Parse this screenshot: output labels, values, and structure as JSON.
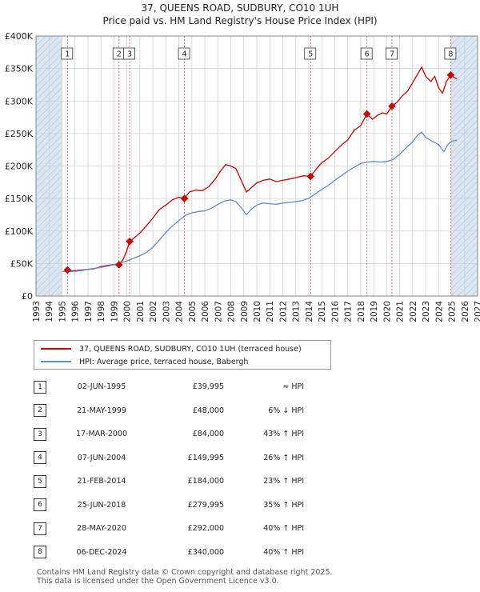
{
  "header": {
    "title_line1": "37, QUEENS ROAD, SUDBURY, CO10 1UH",
    "title_line2": "Price paid vs. HM Land Registry's House Price Index (HPI)"
  },
  "colors": {
    "property": "#cc0000",
    "hpi": "#5b8ccc",
    "grid": "#d0d0d0",
    "shade": "#dbe6f5"
  },
  "chart_data": {
    "type": "line",
    "title": "Price paid vs. HM Land Registry's House Price Index (HPI)",
    "xlim": [
      1993,
      2027
    ],
    "ylim": [
      0,
      400000
    ],
    "x_ticks": [
      "1993",
      "1994",
      "1995",
      "1996",
      "1997",
      "1998",
      "1999",
      "2000",
      "2001",
      "2002",
      "2003",
      "2004",
      "2005",
      "2006",
      "2007",
      "2008",
      "2009",
      "2010",
      "2011",
      "2012",
      "2013",
      "2014",
      "2015",
      "2016",
      "2017",
      "2018",
      "2019",
      "2020",
      "2021",
      "2022",
      "2023",
      "2024",
      "2025",
      "2026",
      "2027"
    ],
    "y_ticks": [
      {
        "value": 0,
        "label": "£0"
      },
      {
        "value": 50000,
        "label": "£50K"
      },
      {
        "value": 100000,
        "label": "£100K"
      },
      {
        "value": 150000,
        "label": "£150K"
      },
      {
        "value": 200000,
        "label": "£200K"
      },
      {
        "value": 250000,
        "label": "£250K"
      },
      {
        "value": 300000,
        "label": "£300K"
      },
      {
        "value": 350000,
        "label": "£350K"
      },
      {
        "value": 400000,
        "label": "£400K"
      }
    ],
    "shaded_ranges": [
      [
        1993,
        1995.0
      ],
      [
        2025.0,
        2027
      ]
    ],
    "series": [
      {
        "name": "37, QUEENS ROAD, SUDBURY, CO10 1UH (terraced house)",
        "color": "#cc0000",
        "points": [
          [
            1995.42,
            39995
          ],
          [
            1995.8,
            38500
          ],
          [
            1996.5,
            40000
          ],
          [
            1997.0,
            41000
          ],
          [
            1997.5,
            42000
          ],
          [
            1998.0,
            45000
          ],
          [
            1998.5,
            47000
          ],
          [
            1999.0,
            48500
          ],
          [
            1999.39,
            48000
          ],
          [
            1999.7,
            56000
          ],
          [
            2000.0,
            70000
          ],
          [
            2000.21,
            84000
          ],
          [
            2000.6,
            90000
          ],
          [
            2001.0,
            97000
          ],
          [
            2001.5,
            108000
          ],
          [
            2002.0,
            120000
          ],
          [
            2002.5,
            133000
          ],
          [
            2003.0,
            140000
          ],
          [
            2003.5,
            148000
          ],
          [
            2004.0,
            152000
          ],
          [
            2004.43,
            149995
          ],
          [
            2004.8,
            160000
          ],
          [
            2005.3,
            163000
          ],
          [
            2005.8,
            162000
          ],
          [
            2006.3,
            168000
          ],
          [
            2006.8,
            180000
          ],
          [
            2007.2,
            192000
          ],
          [
            2007.6,
            202000
          ],
          [
            2008.0,
            200000
          ],
          [
            2008.4,
            196000
          ],
          [
            2008.8,
            178000
          ],
          [
            2009.2,
            160000
          ],
          [
            2009.6,
            167000
          ],
          [
            2010.0,
            174000
          ],
          [
            2010.5,
            178000
          ],
          [
            2011.0,
            180000
          ],
          [
            2011.5,
            176000
          ],
          [
            2012.0,
            178000
          ],
          [
            2012.5,
            180000
          ],
          [
            2013.0,
            182000
          ],
          [
            2013.6,
            185000
          ],
          [
            2014.14,
            184000
          ],
          [
            2014.6,
            196000
          ],
          [
            2015.0,
            205000
          ],
          [
            2015.5,
            212000
          ],
          [
            2016.0,
            222000
          ],
          [
            2016.5,
            232000
          ],
          [
            2017.0,
            240000
          ],
          [
            2017.5,
            255000
          ],
          [
            2018.0,
            262000
          ],
          [
            2018.48,
            279995
          ],
          [
            2018.9,
            272000
          ],
          [
            2019.3,
            278000
          ],
          [
            2019.7,
            282000
          ],
          [
            2020.0,
            280000
          ],
          [
            2020.41,
            292000
          ],
          [
            2020.8,
            298000
          ],
          [
            2021.2,
            308000
          ],
          [
            2021.6,
            315000
          ],
          [
            2022.0,
            328000
          ],
          [
            2022.4,
            342000
          ],
          [
            2022.7,
            352000
          ],
          [
            2023.0,
            338000
          ],
          [
            2023.4,
            330000
          ],
          [
            2023.7,
            338000
          ],
          [
            2024.0,
            320000
          ],
          [
            2024.3,
            312000
          ],
          [
            2024.6,
            330000
          ],
          [
            2024.93,
            340000
          ],
          [
            2025.2,
            336000
          ],
          [
            2025.4,
            334000
          ]
        ]
      },
      {
        "name": "HPI: Average price, terraced house, Babergh",
        "color": "#5b8ccc",
        "points": [
          [
            1995.0,
            38000
          ],
          [
            1995.5,
            37500
          ],
          [
            1996.0,
            38000
          ],
          [
            1996.5,
            39000
          ],
          [
            1997.0,
            41000
          ],
          [
            1997.5,
            42500
          ],
          [
            1998.0,
            44000
          ],
          [
            1998.5,
            46000
          ],
          [
            1999.0,
            48000
          ],
          [
            1999.5,
            51000
          ],
          [
            2000.0,
            54000
          ],
          [
            2000.5,
            58000
          ],
          [
            2001.0,
            62000
          ],
          [
            2001.5,
            67000
          ],
          [
            2002.0,
            75000
          ],
          [
            2002.5,
            86000
          ],
          [
            2003.0,
            98000
          ],
          [
            2003.5,
            108000
          ],
          [
            2004.0,
            116000
          ],
          [
            2004.5,
            124000
          ],
          [
            2005.0,
            128000
          ],
          [
            2005.5,
            130000
          ],
          [
            2006.0,
            131000
          ],
          [
            2006.5,
            135000
          ],
          [
            2007.0,
            141000
          ],
          [
            2007.5,
            146000
          ],
          [
            2008.0,
            148000
          ],
          [
            2008.4,
            145000
          ],
          [
            2008.8,
            136000
          ],
          [
            2009.2,
            125000
          ],
          [
            2009.6,
            134000
          ],
          [
            2010.0,
            140000
          ],
          [
            2010.5,
            143000
          ],
          [
            2011.0,
            142000
          ],
          [
            2011.5,
            141000
          ],
          [
            2012.0,
            143000
          ],
          [
            2012.5,
            144000
          ],
          [
            2013.0,
            145000
          ],
          [
            2013.5,
            147000
          ],
          [
            2014.0,
            150000
          ],
          [
            2014.5,
            157000
          ],
          [
            2015.0,
            164000
          ],
          [
            2015.5,
            170000
          ],
          [
            2016.0,
            178000
          ],
          [
            2016.5,
            185000
          ],
          [
            2017.0,
            192000
          ],
          [
            2017.5,
            198000
          ],
          [
            2018.0,
            204000
          ],
          [
            2018.5,
            206000
          ],
          [
            2019.0,
            207000
          ],
          [
            2019.5,
            206000
          ],
          [
            2020.0,
            207000
          ],
          [
            2020.5,
            210000
          ],
          [
            2021.0,
            218000
          ],
          [
            2021.5,
            228000
          ],
          [
            2022.0,
            237000
          ],
          [
            2022.4,
            248000
          ],
          [
            2022.7,
            252000
          ],
          [
            2023.0,
            244000
          ],
          [
            2023.5,
            238000
          ],
          [
            2024.0,
            233000
          ],
          [
            2024.4,
            222000
          ],
          [
            2024.7,
            233000
          ],
          [
            2025.0,
            238000
          ],
          [
            2025.4,
            240000
          ]
        ]
      }
    ],
    "sales": [
      {
        "num": "1",
        "x": 1995.42,
        "price": 39995
      },
      {
        "num": "2",
        "x": 1999.39,
        "price": 48000
      },
      {
        "num": "3",
        "x": 2000.21,
        "price": 84000
      },
      {
        "num": "4",
        "x": 2004.43,
        "price": 149995
      },
      {
        "num": "5",
        "x": 2014.14,
        "price": 184000
      },
      {
        "num": "6",
        "x": 2018.48,
        "price": 279995
      },
      {
        "num": "7",
        "x": 2020.41,
        "price": 292000
      },
      {
        "num": "8",
        "x": 2024.93,
        "price": 340000
      }
    ]
  },
  "legend": {
    "property_label": "37, QUEENS ROAD, SUDBURY, CO10 1UH (terraced house)",
    "hpi_label": "HPI: Average price, terraced house, Babergh"
  },
  "transactions": [
    {
      "num": "1",
      "date": "02-JUN-1995",
      "price": "£39,995",
      "hpi": "≈ HPI"
    },
    {
      "num": "2",
      "date": "21-MAY-1999",
      "price": "£48,000",
      "hpi": "6% ↓ HPI"
    },
    {
      "num": "3",
      "date": "17-MAR-2000",
      "price": "£84,000",
      "hpi": "43% ↑ HPI"
    },
    {
      "num": "4",
      "date": "07-JUN-2004",
      "price": "£149,995",
      "hpi": "26% ↑ HPI"
    },
    {
      "num": "5",
      "date": "21-FEB-2014",
      "price": "£184,000",
      "hpi": "23% ↑ HPI"
    },
    {
      "num": "6",
      "date": "25-JUN-2018",
      "price": "£279,995",
      "hpi": "35% ↑ HPI"
    },
    {
      "num": "7",
      "date": "28-MAY-2020",
      "price": "£292,000",
      "hpi": "40% ↑ HPI"
    },
    {
      "num": "8",
      "date": "06-DEC-2024",
      "price": "£340,000",
      "hpi": "40% ↑ HPI"
    }
  ],
  "footer": {
    "line1": "Contains HM Land Registry data © Crown copyright and database right 2025.",
    "line2": "This data is licensed under the Open Government Licence v3.0."
  }
}
